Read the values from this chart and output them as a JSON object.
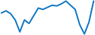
{
  "values": [
    0.5,
    0.8,
    0.4,
    -0.5,
    -2.2,
    -0.5,
    -1.0,
    0.1,
    1.2,
    1.0,
    1.3,
    1.6,
    1.5,
    1.8,
    2.2,
    1.6,
    1.0,
    -1.2,
    -2.5,
    -0.8,
    2.2
  ],
  "line_color": "#1b7fc4",
  "background_color": "#ffffff",
  "linewidth": 1.4
}
